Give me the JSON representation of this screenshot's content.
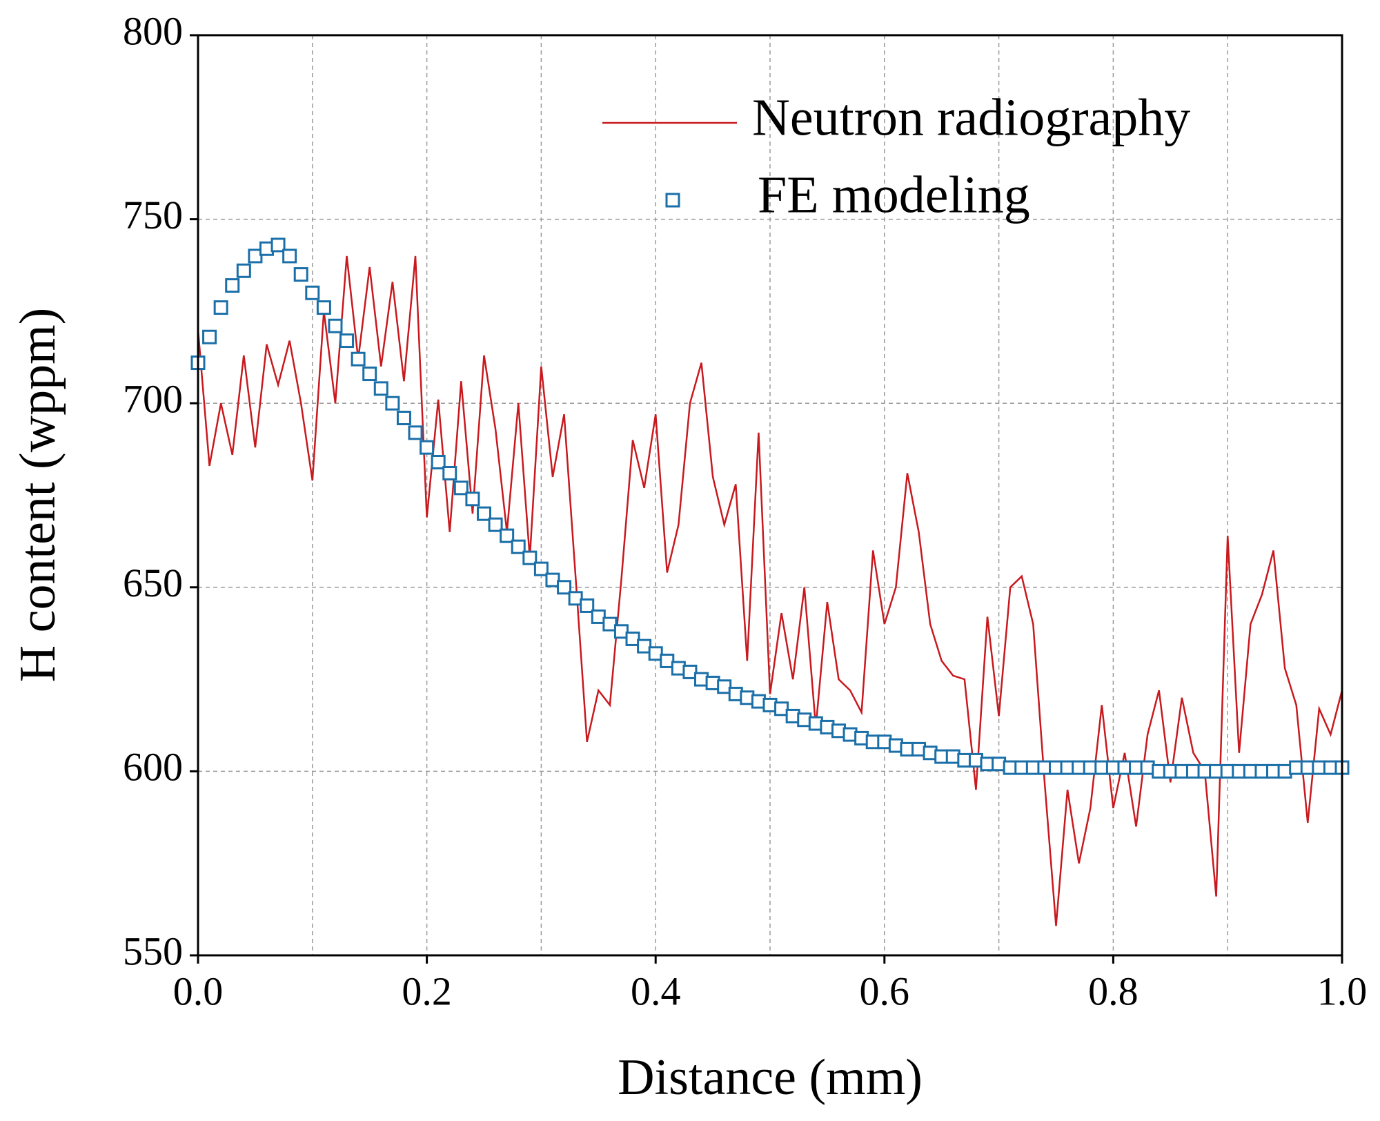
{
  "chart_data": {
    "type": "line",
    "xlabel": "Distance (mm)",
    "ylabel": "H content (wppm)",
    "xlim": [
      0,
      1
    ],
    "ylim": [
      550,
      800
    ],
    "xticks": [
      {
        "value": 0,
        "label": "0.0"
      },
      0.2,
      0.4,
      0.6,
      0.8,
      {
        "value": 1,
        "label": "1.0"
      }
    ],
    "yticks": [
      550,
      600,
      650,
      700,
      750,
      800
    ],
    "grid": true,
    "legend": "upper right",
    "series": [
      {
        "name": "Neutron radiography",
        "color": "#c8191e",
        "marker": "none",
        "x": [
          0,
          0.01,
          0.02,
          0.03,
          0.04,
          0.05,
          0.06,
          0.07,
          0.08,
          0.09,
          0.1,
          0.11,
          0.12,
          0.13,
          0.14,
          0.15,
          0.16,
          0.17,
          0.18,
          0.19,
          0.2,
          0.21,
          0.22,
          0.23,
          0.24,
          0.25,
          0.26,
          0.27,
          0.28,
          0.29,
          0.3,
          0.31,
          0.32,
          0.33,
          0.34,
          0.35,
          0.36,
          0.37,
          0.38,
          0.39,
          0.4,
          0.41,
          0.42,
          0.43,
          0.44,
          0.45,
          0.46,
          0.47,
          0.48,
          0.49,
          0.5,
          0.51,
          0.52,
          0.53,
          0.54,
          0.55,
          0.56,
          0.57,
          0.58,
          0.59,
          0.6,
          0.61,
          0.62,
          0.63,
          0.64,
          0.65,
          0.66,
          0.67,
          0.68,
          0.69,
          0.7,
          0.71,
          0.72,
          0.73,
          0.74,
          0.75,
          0.76,
          0.77,
          0.78,
          0.79,
          0.8,
          0.81,
          0.82,
          0.83,
          0.84,
          0.85,
          0.86,
          0.87,
          0.88,
          0.89,
          0.9,
          0.91,
          0.92,
          0.93,
          0.94,
          0.95,
          0.96,
          0.97,
          0.98,
          0.99,
          1
        ],
        "values": [
          720,
          683,
          700,
          686,
          713,
          688,
          716,
          705,
          717,
          700,
          679,
          725,
          700,
          740,
          712,
          737,
          710,
          733,
          706,
          740,
          669,
          701,
          665,
          706,
          670,
          713,
          693,
          665,
          700,
          658,
          710,
          680,
          697,
          653,
          608,
          622,
          618,
          652,
          690,
          677,
          697,
          654,
          667,
          700,
          711,
          680,
          667,
          678,
          630,
          692,
          621,
          643,
          625,
          650,
          612,
          646,
          625,
          622,
          616,
          660,
          640,
          650,
          681,
          665,
          640,
          630,
          626,
          625,
          595,
          642,
          615,
          650,
          653,
          640,
          597,
          558,
          595,
          575,
          590,
          618,
          590,
          605,
          585,
          610,
          622,
          597,
          620,
          605,
          600,
          566,
          664,
          605,
          640,
          648,
          660,
          628,
          618,
          586,
          617,
          610,
          622
        ]
      },
      {
        "name": "FE modeling",
        "color": "#1a6fa8",
        "marker": "square",
        "x": [
          0,
          0.01,
          0.02,
          0.03,
          0.04,
          0.05,
          0.06,
          0.07,
          0.08,
          0.09,
          0.1,
          0.11,
          0.12,
          0.13,
          0.14,
          0.15,
          0.16,
          0.17,
          0.18,
          0.19,
          0.2,
          0.21,
          0.22,
          0.23,
          0.24,
          0.25,
          0.26,
          0.27,
          0.28,
          0.29,
          0.3,
          0.31,
          0.32,
          0.33,
          0.34,
          0.35,
          0.36,
          0.37,
          0.38,
          0.39,
          0.4,
          0.41,
          0.42,
          0.43,
          0.44,
          0.45,
          0.46,
          0.47,
          0.48,
          0.49,
          0.5,
          0.51,
          0.52,
          0.53,
          0.54,
          0.55,
          0.56,
          0.57,
          0.58,
          0.59,
          0.6,
          0.61,
          0.62,
          0.63,
          0.64,
          0.65,
          0.66,
          0.67,
          0.68,
          0.69,
          0.7,
          0.71,
          0.72,
          0.73,
          0.74,
          0.75,
          0.76,
          0.77,
          0.78,
          0.79,
          0.8,
          0.81,
          0.82,
          0.83,
          0.84,
          0.85,
          0.86,
          0.87,
          0.88,
          0.89,
          0.9,
          0.91,
          0.92,
          0.93,
          0.94,
          0.95,
          0.96,
          0.97,
          0.98,
          0.99,
          1
        ],
        "values": [
          711,
          718,
          726,
          732,
          736,
          740,
          742,
          743,
          740,
          735,
          730,
          726,
          721,
          717,
          712,
          708,
          704,
          700,
          696,
          692,
          688,
          684,
          681,
          677,
          674,
          670,
          667,
          664,
          661,
          658,
          655,
          652,
          650,
          647,
          645,
          642,
          640,
          638,
          636,
          634,
          632,
          630,
          628,
          627,
          625,
          624,
          623,
          621,
          620,
          619,
          618,
          617,
          615,
          614,
          613,
          612,
          611,
          610,
          609,
          608,
          608,
          607,
          606,
          606,
          605,
          604,
          604,
          603,
          603,
          602,
          602,
          601,
          601,
          601,
          601,
          601,
          601,
          601,
          601,
          601,
          601,
          601,
          601,
          601,
          600,
          600,
          600,
          600,
          600,
          600,
          600,
          600,
          600,
          600,
          600,
          600,
          601,
          601,
          601,
          601,
          601
        ]
      }
    ]
  }
}
